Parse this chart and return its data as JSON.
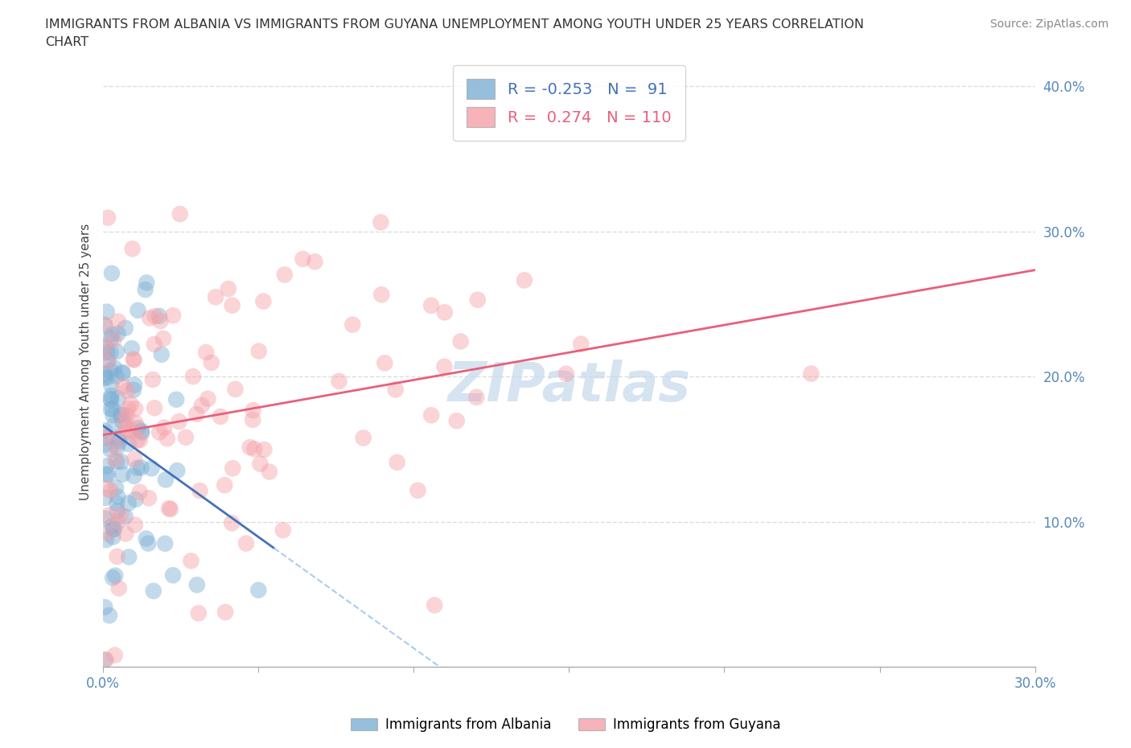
{
  "title_line1": "IMMIGRANTS FROM ALBANIA VS IMMIGRANTS FROM GUYANA UNEMPLOYMENT AMONG YOUTH UNDER 25 YEARS CORRELATION",
  "title_line2": "CHART",
  "source": "Source: ZipAtlas.com",
  "ylabel": "Unemployment Among Youth under 25 years",
  "xlabel_albania": "Immigrants from Albania",
  "xlabel_guyana": "Immigrants from Guyana",
  "albania_R": -0.253,
  "albania_N": 91,
  "guyana_R": 0.274,
  "guyana_N": 110,
  "xlim": [
    0.0,
    0.3
  ],
  "ylim": [
    0.0,
    0.42
  ],
  "yticks": [
    0.1,
    0.2,
    0.3,
    0.4
  ],
  "xtick_left": 0.0,
  "xtick_right": 0.3,
  "albania_color": "#7BAFD4",
  "albania_edge_color": "#7BAFD4",
  "guyana_color": "#F4A0A8",
  "guyana_edge_color": "#F4A0A8",
  "albania_line_color": "#4472B8",
  "guyana_line_color": "#E8607A",
  "albania_dashed_color": "#AACCEE",
  "watermark": "ZIPatlas",
  "watermark_color": "#C5D8EC",
  "background_color": "#FFFFFF",
  "grid_color": "#DDDDDD",
  "tick_label_color": "#5588BB",
  "title_color": "#333333",
  "source_color": "#888888",
  "legend_text_color_albania": "#4472B8",
  "legend_text_color_guyana": "#E8607A",
  "dot_size": 220,
  "dot_alpha": 0.45,
  "seed_albania": 77,
  "seed_guyana": 88
}
